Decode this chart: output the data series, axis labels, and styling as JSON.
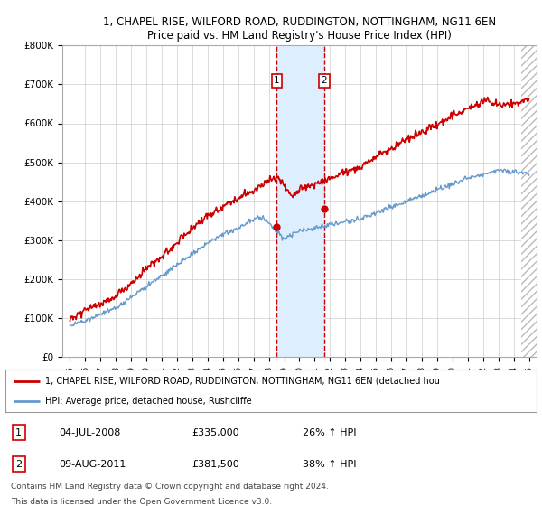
{
  "title_line1": "1, CHAPEL RISE, WILFORD ROAD, RUDDINGTON, NOTTINGHAM, NG11 6EN",
  "title_line2": "Price paid vs. HM Land Registry's House Price Index (HPI)",
  "legend_line1": "1, CHAPEL RISE, WILFORD ROAD, RUDDINGTON, NOTTINGHAM, NG11 6EN (detached hou",
  "legend_line2": "HPI: Average price, detached house, Rushcliffe",
  "table_row1": [
    "1",
    "04-JUL-2008",
    "£335,000",
    "26% ↑ HPI"
  ],
  "table_row2": [
    "2",
    "09-AUG-2011",
    "£381,500",
    "38% ↑ HPI"
  ],
  "footnote1": "Contains HM Land Registry data © Crown copyright and database right 2024.",
  "footnote2": "This data is licensed under the Open Government Licence v3.0.",
  "ylim": [
    0,
    800000
  ],
  "sale1_year": 2008.52,
  "sale2_year": 2011.61,
  "sale1_price": 335000,
  "sale2_price": 381500,
  "red_color": "#cc0000",
  "blue_color": "#6699cc",
  "shade_color": "#ddeeff",
  "grid_color": "#cccccc",
  "box_color": "#cc0000",
  "hatch_start": 2024.5,
  "xmin": 1994.5,
  "xmax": 2025.5
}
